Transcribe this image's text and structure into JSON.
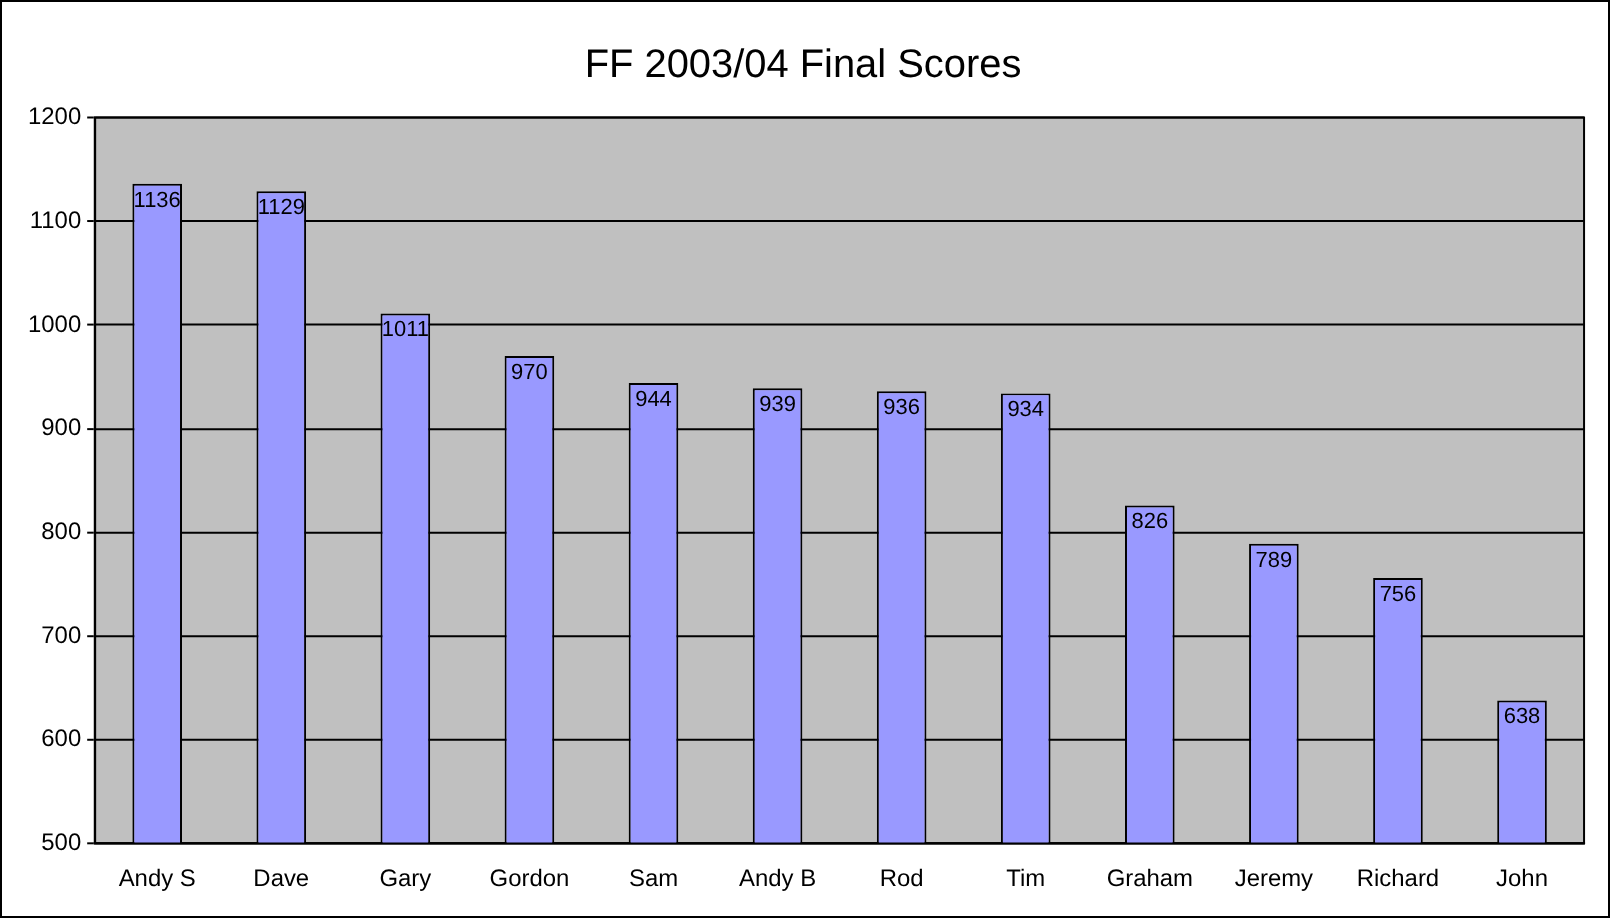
{
  "chart_data": {
    "type": "bar",
    "title": "FF 2003/04 Final Scores",
    "categories": [
      "Andy S",
      "Dave",
      "Gary",
      "Gordon",
      "Sam",
      "Andy B",
      "Rod",
      "Tim",
      "Graham",
      "Jeremy",
      "Richard",
      "John"
    ],
    "values": [
      1136,
      1129,
      1011,
      970,
      944,
      939,
      936,
      934,
      826,
      789,
      756,
      638
    ],
    "color": "#9999ff",
    "ylim": [
      500,
      1200
    ],
    "yticks": [
      500,
      600,
      700,
      800,
      900,
      1000,
      1100,
      1200
    ],
    "grid": "y",
    "legend": false,
    "data_labels": true
  }
}
